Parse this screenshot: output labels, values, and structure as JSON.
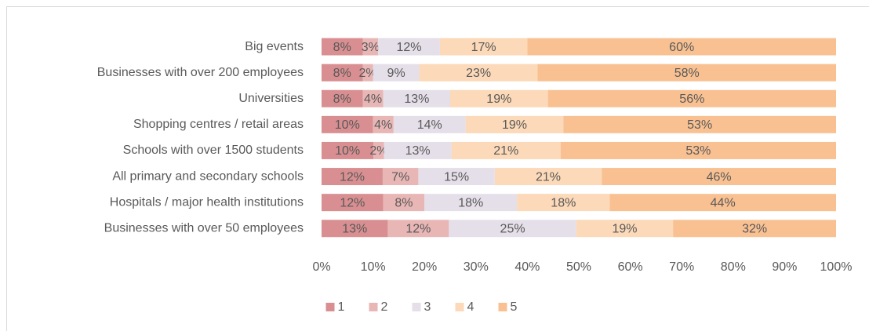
{
  "chart_data": {
    "type": "bar",
    "orientation": "horizontal",
    "stacked": "percent",
    "grid": false,
    "legend": "bottom",
    "categories": [
      "Big events",
      "Businesses with over 200 employees",
      "Universities",
      "Shopping centres / retail areas",
      "Schools with over 1500 students",
      "All primary and secondary schools",
      "Hospitals / major health institutions",
      "Businesses with over 50 employees"
    ],
    "series": [
      {
        "name": "1",
        "color": "#d98f91",
        "values": [
          8,
          8,
          8,
          10,
          10,
          12,
          12,
          13
        ],
        "value_labels": [
          "8%",
          "8%",
          "8%",
          "10%",
          "10%",
          "12%",
          "12%",
          "13%"
        ]
      },
      {
        "name": "2",
        "color": "#e9b6b6",
        "values": [
          3,
          2,
          4,
          4,
          2,
          7,
          8,
          12
        ],
        "value_labels": [
          "3%",
          "2%",
          "4%",
          "4%",
          "2%",
          "7%",
          "8%",
          "12%"
        ]
      },
      {
        "name": "3",
        "color": "#e5dfe9",
        "values": [
          12,
          9,
          13,
          14,
          13,
          15,
          18,
          25
        ],
        "value_labels": [
          "12%",
          "9%",
          "13%",
          "14%",
          "13%",
          "15%",
          "18%",
          "25%"
        ]
      },
      {
        "name": "4",
        "color": "#fcd9b8",
        "values": [
          17,
          23,
          19,
          19,
          21,
          21,
          18,
          19
        ],
        "value_labels": [
          "17%",
          "23%",
          "19%",
          "19%",
          "21%",
          "21%",
          "18%",
          "19%"
        ]
      },
      {
        "name": "5",
        "color": "#f9c192",
        "values": [
          60,
          58,
          56,
          53,
          53,
          46,
          44,
          32
        ],
        "value_labels": [
          "60%",
          "58%",
          "56%",
          "53%",
          "53%",
          "46%",
          "44%",
          "32%"
        ]
      }
    ],
    "xlim": [
      0,
      100
    ],
    "xticks": [
      {
        "value": 0,
        "label": "0%"
      },
      {
        "value": 10,
        "label": "10%"
      },
      {
        "value": 20,
        "label": "20%"
      },
      {
        "value": 30,
        "label": "30%"
      },
      {
        "value": 40,
        "label": "40%"
      },
      {
        "value": 50,
        "label": "50%"
      },
      {
        "value": 60,
        "label": "60%"
      },
      {
        "value": 70,
        "label": "70%"
      },
      {
        "value": 80,
        "label": "80%"
      },
      {
        "value": 90,
        "label": "90%"
      },
      {
        "value": 100,
        "label": "100%"
      }
    ]
  }
}
